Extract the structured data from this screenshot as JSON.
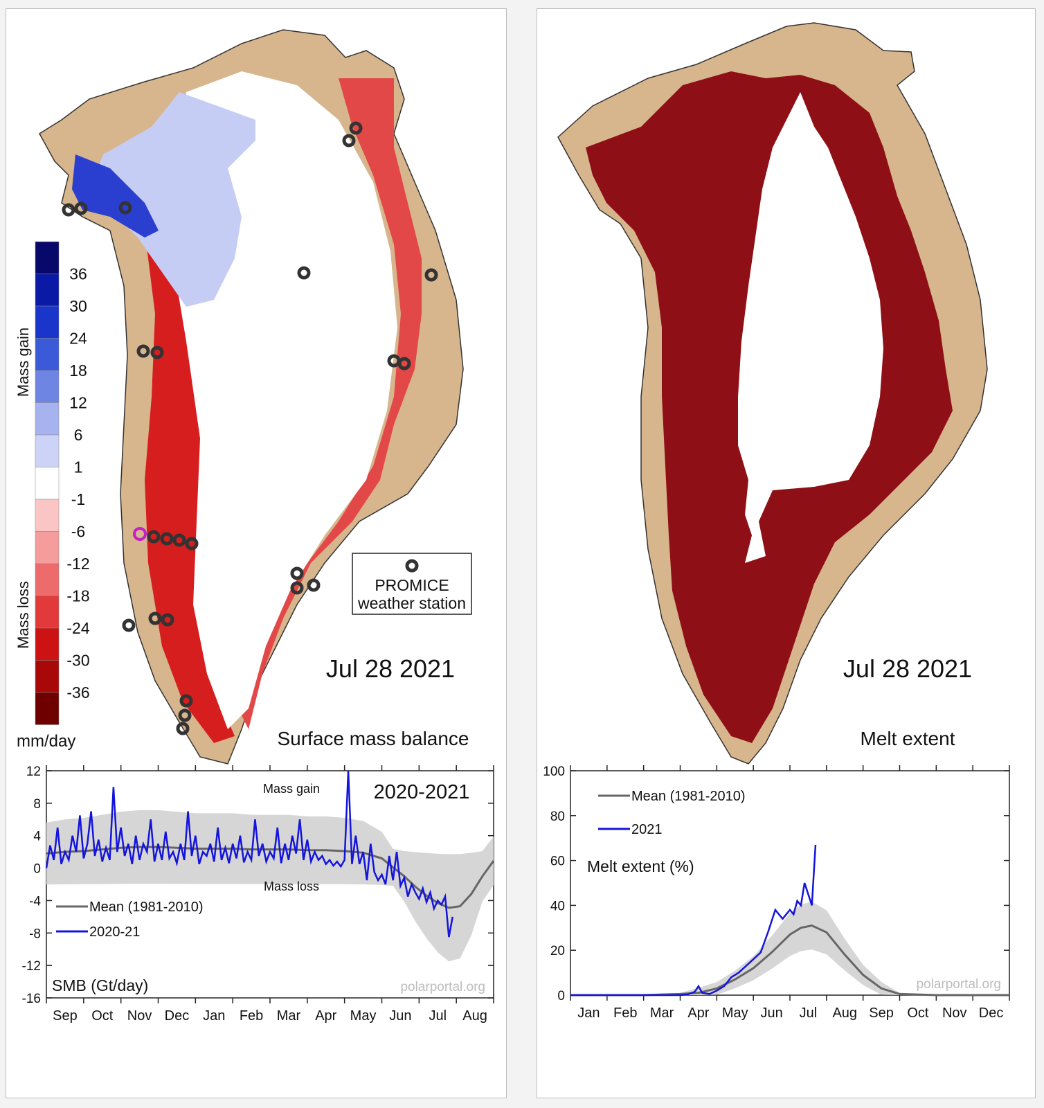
{
  "smb_map": {
    "title": "Surface mass balance",
    "date": "Jul 28 2021",
    "colorbar": {
      "ticks": [
        "36",
        "30",
        "24",
        "18",
        "12",
        "6",
        "1",
        "-1",
        "-6",
        "-12",
        "-18",
        "-24",
        "-30",
        "-36"
      ],
      "colors": [
        "#08086b",
        "#0a1aa6",
        "#1a35c9",
        "#3a5ad8",
        "#6f85e3",
        "#a7b3ee",
        "#cdd3f6",
        "#ffffff",
        "#fbc5c5",
        "#f59c9c",
        "#ee6b6b",
        "#e23a3a",
        "#cc1212",
        "#a80808",
        "#6e0000"
      ],
      "gain_label": "Mass gain",
      "loss_label": "Mass loss",
      "unit": "mm/day"
    },
    "legend": {
      "label_line1": "PROMICE",
      "label_line2": "weather station"
    }
  },
  "melt_map": {
    "title": "Melt extent",
    "date": "Jul 28 2021",
    "melt_color": "#8e1016",
    "land_color": "#d7b58d"
  },
  "chart_data": [
    {
      "type": "line",
      "title": "2020-2021",
      "ylabel": "SMB (Gt/day)",
      "ylim": [
        -16,
        12
      ],
      "yticks": [
        "12",
        "8",
        "4",
        "0",
        "-4",
        "-8",
        "-12",
        "-16"
      ],
      "categories": [
        "Sep",
        "Oct",
        "Nov",
        "Dec",
        "Jan",
        "Feb",
        "Mar",
        "Apr",
        "May",
        "Jun",
        "Jul",
        "Aug"
      ],
      "annotations": {
        "top": "Mass gain",
        "zero": "Mass loss"
      },
      "watermark": "polarportal.org",
      "series": [
        {
          "name": "Mean (1981-2010)",
          "color": "#666666",
          "x": [
            0,
            0.5,
            1,
            1.5,
            2,
            2.5,
            3,
            3.5,
            4,
            4.5,
            5,
            5.5,
            6,
            6.5,
            7,
            7.5,
            8,
            8.5,
            9,
            9.3,
            9.6,
            9.9,
            10.2,
            10.5,
            10.8,
            11.1,
            11.4,
            11.7,
            12
          ],
          "values": [
            1.8,
            2,
            2.1,
            2.3,
            2.5,
            2.6,
            2.6,
            2.5,
            2.4,
            2.4,
            2.4,
            2.3,
            2.3,
            2.3,
            2.2,
            2.2,
            2.1,
            1.9,
            1.2,
            0.1,
            -1,
            -2.3,
            -3.4,
            -4.3,
            -4.9,
            -4.7,
            -3.2,
            -1,
            0.9
          ]
        },
        {
          "name": "2020-21",
          "color": "#1414dc",
          "x": [
            0,
            0.1,
            0.2,
            0.3,
            0.4,
            0.5,
            0.6,
            0.7,
            0.8,
            0.9,
            1,
            1.1,
            1.2,
            1.3,
            1.4,
            1.5,
            1.6,
            1.7,
            1.8,
            1.9,
            2,
            2.1,
            2.2,
            2.3,
            2.4,
            2.5,
            2.6,
            2.7,
            2.8,
            2.9,
            3,
            3.1,
            3.2,
            3.3,
            3.4,
            3.5,
            3.6,
            3.7,
            3.8,
            3.9,
            4,
            4.1,
            4.2,
            4.3,
            4.4,
            4.5,
            4.6,
            4.7,
            4.8,
            4.9,
            5,
            5.1,
            5.2,
            5.3,
            5.4,
            5.5,
            5.6,
            5.7,
            5.8,
            5.9,
            6,
            6.1,
            6.2,
            6.3,
            6.4,
            6.5,
            6.6,
            6.7,
            6.8,
            6.9,
            7,
            7.1,
            7.2,
            7.3,
            7.4,
            7.5,
            7.6,
            7.7,
            7.8,
            7.9,
            8,
            8.1,
            8.2,
            8.3,
            8.4,
            8.5,
            8.6,
            8.7,
            8.8,
            8.9,
            9,
            9.1,
            9.2,
            9.3,
            9.4,
            9.5,
            9.6,
            9.7,
            9.8,
            9.9,
            10,
            10.1,
            10.2,
            10.3,
            10.4,
            10.5,
            10.6,
            10.7,
            10.8,
            10.9
          ],
          "values": [
            0,
            2.8,
            1,
            5,
            0.5,
            2,
            1,
            4,
            2,
            6.5,
            1.2,
            3,
            7,
            1.5,
            3.5,
            0.8,
            2.5,
            1,
            10,
            2,
            5,
            1.5,
            3,
            0.5,
            4,
            1,
            3,
            2,
            6,
            0.8,
            3,
            1,
            4.5,
            1.2,
            2,
            0.6,
            3,
            1,
            7,
            1.5,
            4,
            0.5,
            2,
            1.5,
            3,
            0.8,
            5,
            1,
            2.5,
            0.6,
            3,
            1.2,
            4,
            0.7,
            2,
            1,
            6,
            1.5,
            3,
            0.8,
            2,
            1.2,
            5,
            0.6,
            3,
            1,
            4,
            1.8,
            6,
            1,
            3.5,
            0.8,
            2,
            1,
            1.5,
            0.5,
            1,
            0.3,
            0.8,
            0.2,
            1,
            12,
            0.5,
            4,
            0.5,
            2,
            -1.5,
            3,
            -0.5,
            -1.5,
            -0.8,
            -2,
            1.5,
            -1.5,
            2,
            -2.2,
            -1.2,
            -3.5,
            -2,
            -3,
            -3.8,
            -2.5,
            -4.2,
            -3,
            -5,
            -4,
            -4.5,
            -3.5,
            -8.5,
            -6
          ]
        }
      ]
    },
    {
      "type": "line",
      "title": "Melt extent (%)",
      "ylabel": "Melt extent (%)",
      "ylim": [
        0,
        100
      ],
      "yticks": [
        "100",
        "80",
        "60",
        "40",
        "20",
        "0"
      ],
      "categories": [
        "Jan",
        "Feb",
        "Mar",
        "Apr",
        "May",
        "Jun",
        "Jul",
        "Aug",
        "Sep",
        "Oct",
        "Nov",
        "Dec"
      ],
      "watermark": "polarportal.org",
      "series": [
        {
          "name": "Mean (1981-2010)",
          "color": "#666666",
          "x": [
            0,
            1,
            2,
            3,
            3.5,
            4,
            4.5,
            5,
            5.5,
            6,
            6.3,
            6.6,
            7,
            7.5,
            8,
            8.5,
            9,
            10,
            11,
            12
          ],
          "values": [
            0,
            0,
            0,
            0.5,
            1,
            3,
            7,
            12,
            19,
            27,
            30,
            31,
            28,
            18,
            9,
            3,
            0.5,
            0,
            0,
            0
          ]
        },
        {
          "name": "2021",
          "color": "#1414dc",
          "x": [
            0,
            1,
            2,
            3,
            3.2,
            3.4,
            3.5,
            3.6,
            3.8,
            4,
            4.2,
            4.4,
            4.6,
            4.8,
            5,
            5.2,
            5.4,
            5.6,
            5.8,
            6,
            6.1,
            6.2,
            6.3,
            6.4,
            6.5,
            6.6,
            6.7
          ],
          "values": [
            0,
            0,
            0,
            0,
            0.3,
            1.5,
            4,
            1,
            0.5,
            2,
            4,
            8,
            10,
            13,
            16,
            19,
            28,
            38,
            34,
            38,
            36,
            42,
            40,
            50,
            45,
            40,
            67
          ]
        }
      ]
    }
  ]
}
